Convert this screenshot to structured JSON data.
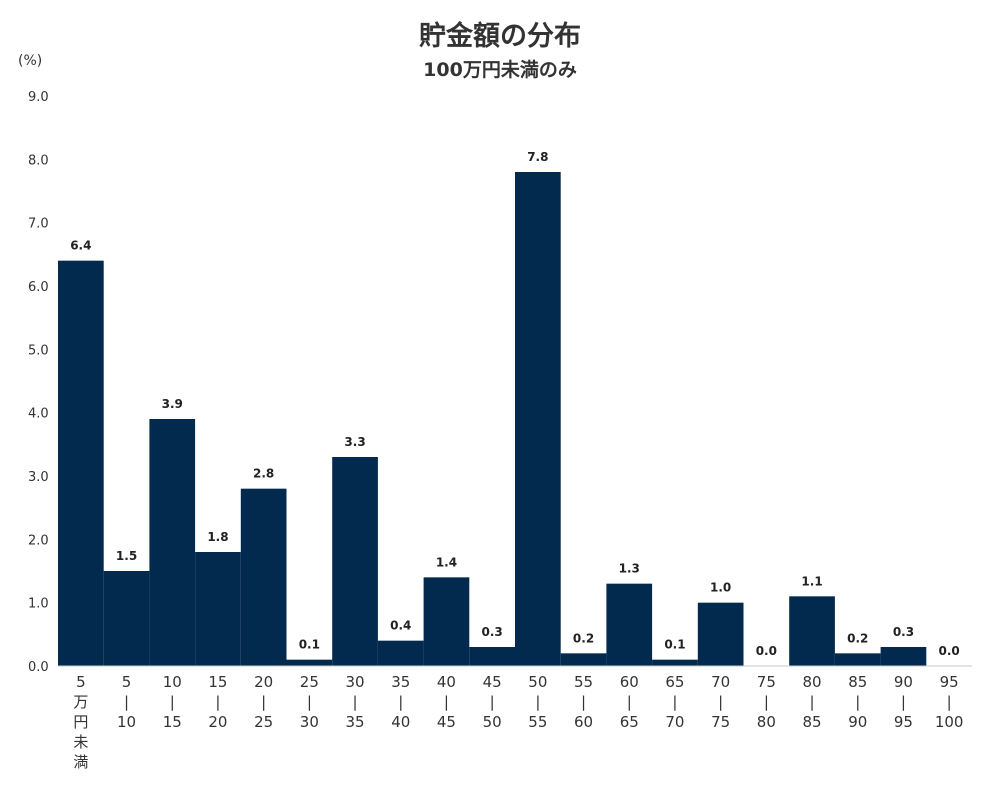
{
  "title": "貯金額の分布",
  "subtitle": "100万円未満のみ",
  "unit_label": "(%)",
  "colors": {
    "bar": "#022a4e",
    "axis": "#c8c8c8"
  },
  "chart_data": {
    "type": "bar",
    "title": "貯金額の分布",
    "subtitle": "100万円未満のみ",
    "ylabel": "(%)",
    "xlabel": "",
    "ylim": [
      0,
      9
    ],
    "yticks": [
      "0.0",
      "1.0",
      "2.0",
      "3.0",
      "4.0",
      "5.0",
      "6.0",
      "7.0",
      "8.0",
      "9.0"
    ],
    "grid": false,
    "categories": [
      [
        "5",
        "万",
        "円",
        "未",
        "満"
      ],
      [
        "5",
        "|",
        "10"
      ],
      [
        "10",
        "|",
        "15"
      ],
      [
        "15",
        "|",
        "20"
      ],
      [
        "20",
        "|",
        "25"
      ],
      [
        "25",
        "|",
        "30"
      ],
      [
        "30",
        "|",
        "35"
      ],
      [
        "35",
        "|",
        "40"
      ],
      [
        "40",
        "|",
        "45"
      ],
      [
        "45",
        "|",
        "50"
      ],
      [
        "50",
        "|",
        "55"
      ],
      [
        "55",
        "|",
        "60"
      ],
      [
        "60",
        "|",
        "65"
      ],
      [
        "65",
        "|",
        "70"
      ],
      [
        "70",
        "|",
        "75"
      ],
      [
        "75",
        "|",
        "80"
      ],
      [
        "80",
        "|",
        "85"
      ],
      [
        "85",
        "|",
        "90"
      ],
      [
        "90",
        "|",
        "95"
      ],
      [
        "95",
        "|",
        "100"
      ]
    ],
    "values": [
      6.4,
      1.5,
      3.9,
      1.8,
      2.8,
      0.1,
      3.3,
      0.4,
      1.4,
      0.3,
      7.8,
      0.2,
      1.3,
      0.1,
      1.0,
      0.0,
      1.1,
      0.2,
      0.3,
      0.0
    ],
    "data_labels": [
      "6.4",
      "1.5",
      "3.9",
      "1.8",
      "2.8",
      "0.1",
      "3.3",
      "0.4",
      "1.4",
      "0.3",
      "7.8",
      "0.2",
      "1.3",
      "0.1",
      "1.0",
      "0.0",
      "1.1",
      "0.2",
      "0.3",
      "0.0"
    ]
  }
}
